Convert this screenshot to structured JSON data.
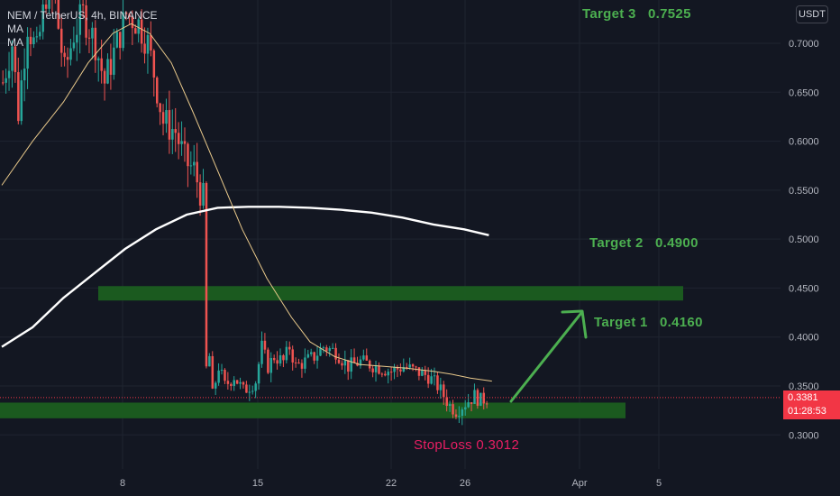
{
  "header": {
    "symbol_line": "NEM / TetherUS, 4h, BINANCE",
    "indicator_1": "MA",
    "indicator_2": "MA"
  },
  "currency_button": "USDT",
  "last_price": {
    "value": "0.3381",
    "countdown": "01:28:53"
  },
  "annotations": {
    "target3": "Target 3   0.7525",
    "target2": "Target 2   0.4900",
    "target1": "Target 1   0.4160",
    "stoploss": "StopLoss 0.3012"
  },
  "colors": {
    "background": "#131722",
    "grid": "#1f2430",
    "bull": "#26a69a",
    "bear": "#ef5350",
    "ma_slow": "#ffffff",
    "ma_fast": "#e9c98b",
    "zone": "#1b5e20",
    "target_text": "#4caf50",
    "stoploss_text": "#e91e63",
    "price_line": "#f23645"
  },
  "chart_data": {
    "type": "candlestick",
    "symbol": "NEM / TetherUS",
    "interval": "4h",
    "exchange": "BINANCE",
    "x_ticks": [
      "8",
      "15",
      "22",
      "26",
      "Apr",
      "5"
    ],
    "y_ticks": [
      "0.7000",
      "0.6500",
      "0.6000",
      "0.5500",
      "0.5000",
      "0.4500",
      "0.4000",
      "0.3500",
      "0.3000"
    ],
    "ylim": [
      0.265,
      0.74
    ],
    "last_price": 0.3381,
    "zones": [
      {
        "from": 0.4436,
        "to": 0.452
      },
      {
        "from": 0.317,
        "to": 0.333
      }
    ],
    "targets": [
      0.7525,
      0.49,
      0.416
    ],
    "stoploss": 0.3012,
    "price_path": [
      [
        0,
        0.66
      ],
      [
        3,
        0.7
      ],
      [
        5,
        0.63
      ],
      [
        8,
        0.72
      ],
      [
        11,
        0.69
      ],
      [
        14,
        0.75
      ],
      [
        17,
        0.74
      ],
      [
        20,
        0.67
      ],
      [
        23,
        0.71
      ],
      [
        26,
        0.73
      ],
      [
        30,
        0.7
      ],
      [
        33,
        0.66
      ],
      [
        36,
        0.69
      ],
      [
        40,
        0.73
      ],
      [
        44,
        0.72
      ],
      [
        47,
        0.7
      ],
      [
        49,
        0.67
      ],
      [
        52,
        0.62
      ],
      [
        56,
        0.61
      ],
      [
        59,
        0.58
      ],
      [
        62,
        0.57
      ],
      [
        65,
        0.54
      ],
      [
        67,
        0.38
      ],
      [
        68,
        0.34
      ],
      [
        70,
        0.37
      ],
      [
        72,
        0.35
      ],
      [
        75,
        0.36
      ],
      [
        78,
        0.345
      ],
      [
        82,
        0.355
      ],
      [
        84,
        0.39
      ],
      [
        86,
        0.37
      ],
      [
        88,
        0.38
      ],
      [
        91,
        0.375
      ],
      [
        93,
        0.39
      ],
      [
        95,
        0.37
      ],
      [
        98,
        0.375
      ],
      [
        101,
        0.38
      ],
      [
        104,
        0.39
      ],
      [
        108,
        0.385
      ],
      [
        112,
        0.37
      ],
      [
        116,
        0.375
      ],
      [
        121,
        0.37
      ],
      [
        126,
        0.365
      ],
      [
        130,
        0.37
      ],
      [
        134,
        0.365
      ],
      [
        138,
        0.36
      ],
      [
        141,
        0.35
      ],
      [
        143,
        0.34
      ],
      [
        145,
        0.33
      ],
      [
        147,
        0.325
      ],
      [
        149,
        0.33
      ],
      [
        151,
        0.335
      ],
      [
        153,
        0.34
      ],
      [
        155,
        0.335
      ],
      [
        157,
        0.338
      ]
    ],
    "ma_fast": [
      [
        0,
        0.555
      ],
      [
        10,
        0.6
      ],
      [
        20,
        0.64
      ],
      [
        28,
        0.68
      ],
      [
        36,
        0.71
      ],
      [
        42,
        0.72
      ],
      [
        48,
        0.71
      ],
      [
        55,
        0.68
      ],
      [
        62,
        0.63
      ],
      [
        70,
        0.57
      ],
      [
        78,
        0.51
      ],
      [
        86,
        0.46
      ],
      [
        94,
        0.42
      ],
      [
        100,
        0.395
      ],
      [
        108,
        0.38
      ],
      [
        116,
        0.372
      ],
      [
        124,
        0.37
      ],
      [
        132,
        0.368
      ],
      [
        140,
        0.365
      ],
      [
        146,
        0.362
      ],
      [
        152,
        0.358
      ],
      [
        159,
        0.355
      ]
    ],
    "ma_slow": [
      [
        0,
        0.39
      ],
      [
        10,
        0.41
      ],
      [
        20,
        0.44
      ],
      [
        30,
        0.465
      ],
      [
        40,
        0.49
      ],
      [
        50,
        0.51
      ],
      [
        60,
        0.525
      ],
      [
        70,
        0.532
      ],
      [
        80,
        0.533
      ],
      [
        90,
        0.533
      ],
      [
        100,
        0.532
      ],
      [
        110,
        0.53
      ],
      [
        120,
        0.527
      ],
      [
        130,
        0.522
      ],
      [
        140,
        0.515
      ],
      [
        150,
        0.51
      ],
      [
        158,
        0.504
      ]
    ]
  }
}
